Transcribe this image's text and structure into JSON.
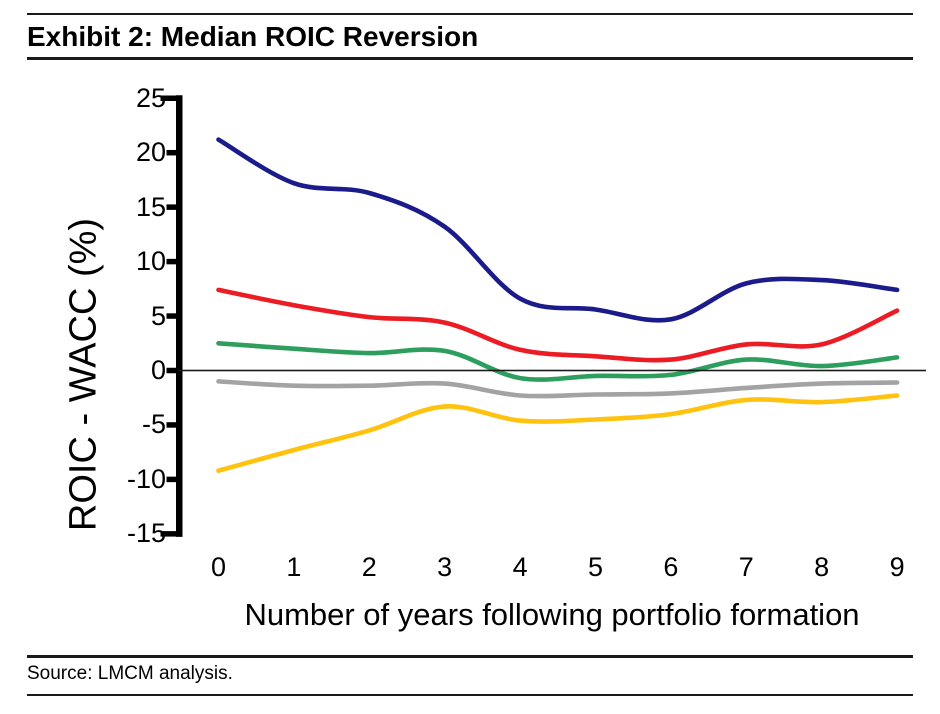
{
  "header": {
    "title": "Exhibit 2: Median ROIC Reversion"
  },
  "footer": {
    "source": "Source: LMCM analysis."
  },
  "chart_data": {
    "type": "line",
    "title": "Exhibit 2: Median ROIC Reversion",
    "xlabel": "Number of years following portfolio formation",
    "ylabel": "ROIC - WACC (%)",
    "x": [
      0,
      1,
      2,
      3,
      4,
      5,
      6,
      7,
      8,
      9
    ],
    "xlim": [
      0,
      9
    ],
    "ylim": [
      -15,
      25
    ],
    "yticks": [
      25,
      20,
      15,
      10,
      5,
      0,
      -5,
      -10,
      -15
    ],
    "grid": false,
    "legend": "none",
    "zero_line": true,
    "axis_color": "#000000",
    "series": [
      {
        "name": "navy-line",
        "color": "#1B1B8C",
        "values": [
          21.2,
          17.2,
          16.3,
          13.2,
          6.6,
          5.6,
          4.7,
          8.0,
          8.3,
          7.4
        ]
      },
      {
        "name": "red-line",
        "color": "#EC1C24",
        "values": [
          7.4,
          6.0,
          4.9,
          4.4,
          1.9,
          1.3,
          1.0,
          2.4,
          2.4,
          5.5
        ]
      },
      {
        "name": "green-line",
        "color": "#2E9E5E",
        "values": [
          2.5,
          2.0,
          1.6,
          1.8,
          -0.7,
          -0.5,
          -0.4,
          1.0,
          0.4,
          1.2
        ]
      },
      {
        "name": "gray-line",
        "color": "#A3A3A3",
        "values": [
          -1.0,
          -1.4,
          -1.4,
          -1.2,
          -2.3,
          -2.2,
          -2.1,
          -1.6,
          -1.2,
          -1.1
        ]
      },
      {
        "name": "gold-line",
        "color": "#FFC20E",
        "values": [
          -9.2,
          -7.3,
          -5.5,
          -3.3,
          -4.6,
          -4.5,
          -4.0,
          -2.7,
          -2.9,
          -2.3
        ]
      }
    ]
  }
}
